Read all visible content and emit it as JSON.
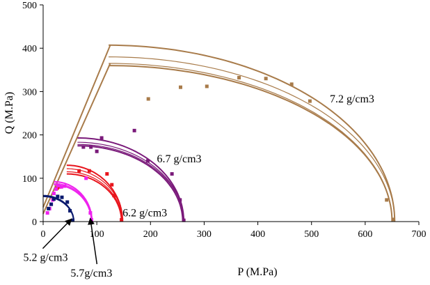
{
  "chart_data": {
    "type": "line",
    "xlabel": "P (M.Pa)",
    "ylabel": "Q (M.Pa)",
    "xlim": [
      0,
      700
    ],
    "ylim": [
      0,
      500
    ],
    "xticks": [
      0,
      100,
      200,
      300,
      400,
      500,
      600,
      700
    ],
    "yticks": [
      0,
      100,
      200,
      300,
      400,
      500
    ],
    "grid": false,
    "legend": "none",
    "annotations": [
      {
        "text": "7.2 g/cm3",
        "x": 534,
        "y": 275
      },
      {
        "text": "6.7 g/cm3",
        "x": 212,
        "y": 137
      },
      {
        "text": "6.2 g/cm3",
        "x": 148,
        "y": 12
      },
      {
        "text": "5.2 g/cm3",
        "x": -37,
        "y": -91,
        "arrow_to": [
          52,
          5
        ]
      },
      {
        "text": "5.7g/cm3",
        "x": 51,
        "y": -127,
        "arrow_to": [
          88,
          6
        ]
      }
    ],
    "series": [
      {
        "color": "#a87b4a",
        "p0": 655,
        "line_a": {
          "x1": 0,
          "y1": 33,
          "x2": 125,
          "y2": 407
        },
        "line_b": {
          "x1": 0,
          "y1": 18,
          "x2": 125,
          "y2": 365
        },
        "caps": [
          {
            "xc": 122,
            "q": 407,
            "xe": 655
          },
          {
            "xc": 122,
            "q": 380,
            "xe": 655
          },
          {
            "xc": 122,
            "q": 365,
            "xe": 650
          },
          {
            "xc": 122,
            "q": 360,
            "xe": 650
          }
        ],
        "points": [
          [
            196,
            283
          ],
          [
            256,
            310
          ],
          [
            305,
            312
          ],
          [
            365,
            332
          ],
          [
            415,
            330
          ],
          [
            463,
            317
          ],
          [
            497,
            278
          ],
          [
            640,
            50
          ],
          [
            652,
            5
          ]
        ]
      },
      {
        "color": "#7a1a7a",
        "caps": [
          {
            "xc": 64,
            "q": 193,
            "xe": 262
          },
          {
            "xc": 64,
            "q": 183,
            "xe": 262
          },
          {
            "xc": 64,
            "q": 178,
            "xe": 262
          },
          {
            "xc": 64,
            "q": 175,
            "xe": 260
          }
        ],
        "points": [
          [
            75,
            172
          ],
          [
            89,
            172
          ],
          [
            100,
            162
          ],
          [
            109,
            193
          ],
          [
            170,
            210
          ],
          [
            195,
            140
          ],
          [
            240,
            110
          ],
          [
            255,
            50
          ],
          [
            262,
            3
          ]
        ]
      },
      {
        "color": "#e8141c",
        "caps": [
          {
            "xc": 44,
            "q": 130,
            "xe": 148
          },
          {
            "xc": 44,
            "q": 122,
            "xe": 148
          },
          {
            "xc": 44,
            "q": 115,
            "xe": 147
          },
          {
            "xc": 44,
            "q": 110,
            "xe": 146
          }
        ],
        "points": [
          [
            26,
            77
          ],
          [
            30,
            80
          ],
          [
            67,
            117
          ],
          [
            86,
            117
          ],
          [
            119,
            110
          ],
          [
            128,
            85
          ],
          [
            132,
            60
          ],
          [
            146,
            4
          ]
        ]
      },
      {
        "color": "#ee22ee",
        "caps": [
          {
            "xc": 20,
            "q": 92,
            "xe": 91
          },
          {
            "xc": 20,
            "q": 88,
            "xe": 91
          },
          {
            "xc": 20,
            "q": 85,
            "xe": 90
          }
        ],
        "points": [
          [
            8,
            20
          ],
          [
            12,
            30
          ],
          [
            15,
            40
          ],
          [
            18,
            50
          ],
          [
            20,
            65
          ],
          [
            24,
            75
          ],
          [
            28,
            83
          ],
          [
            34,
            80
          ],
          [
            40,
            82
          ],
          [
            80,
            100
          ],
          [
            88,
            20
          ],
          [
            90,
            4
          ]
        ]
      },
      {
        "color": "#0a1a6e",
        "caps": [
          {
            "xc": 0,
            "q": 60,
            "xe": 57
          },
          {
            "xc": 0,
            "q": 58,
            "xe": 57
          }
        ],
        "points": [
          [
            10,
            30
          ],
          [
            15,
            40
          ],
          [
            20,
            52
          ],
          [
            27,
            58
          ],
          [
            35,
            56
          ],
          [
            45,
            45
          ],
          [
            50,
            25
          ],
          [
            55,
            3
          ]
        ]
      }
    ]
  }
}
